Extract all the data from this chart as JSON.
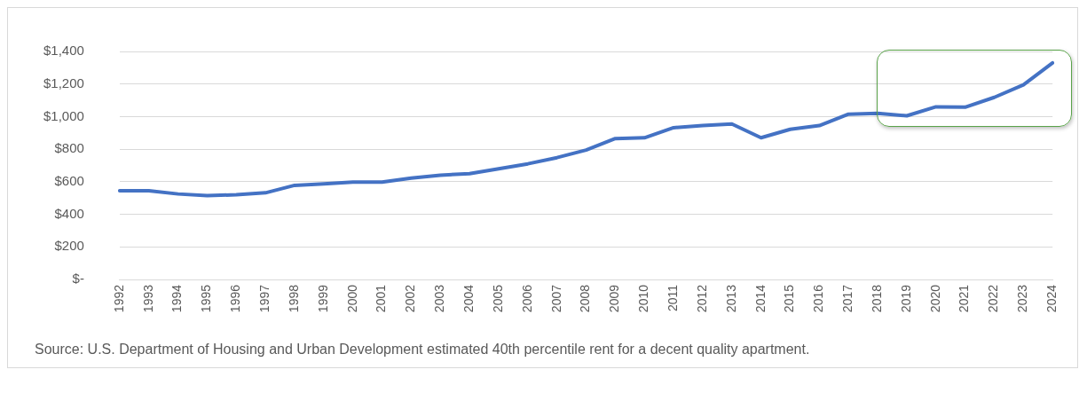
{
  "chart_data": {
    "type": "line",
    "categories": [
      "1992",
      "1993",
      "1994",
      "1995",
      "1996",
      "1997",
      "1998",
      "1999",
      "2000",
      "2001",
      "2002",
      "2003",
      "2004",
      "2005",
      "2006",
      "2007",
      "2008",
      "2009",
      "2010",
      "2011",
      "2012",
      "2013",
      "2014",
      "2015",
      "2016",
      "2017",
      "2018",
      "2019",
      "2020",
      "2021",
      "2022",
      "2023",
      "2024"
    ],
    "series": [
      {
        "color": "#4472c4",
        "values": [
          545,
          545,
          525,
          515,
          520,
          532,
          578,
          587,
          598,
          598,
          622,
          640,
          650,
          680,
          710,
          748,
          795,
          865,
          870,
          932,
          945,
          955,
          870,
          922,
          945,
          1015,
          1020,
          1005,
          1060,
          1058,
          1118,
          1195,
          1330
        ]
      }
    ],
    "ylim": [
      0,
      1400
    ],
    "yticks": [
      {
        "value": 0,
        "label": "$-"
      },
      {
        "value": 200,
        "label": "$200"
      },
      {
        "value": 400,
        "label": "$400"
      },
      {
        "value": 600,
        "label": "$600"
      },
      {
        "value": 800,
        "label": "$800"
      },
      {
        "value": 1000,
        "label": "$1,000"
      },
      {
        "value": 1200,
        "label": "$1,200"
      },
      {
        "value": 1400,
        "label": "$1,400"
      }
    ],
    "grid": "y",
    "legend": false,
    "marker": "none",
    "line_style": "solid",
    "annotations": [
      "Source:  U.S. Department of Housing and Urban Development estimated 40th percentile rent for a decent quality apartment."
    ]
  }
}
